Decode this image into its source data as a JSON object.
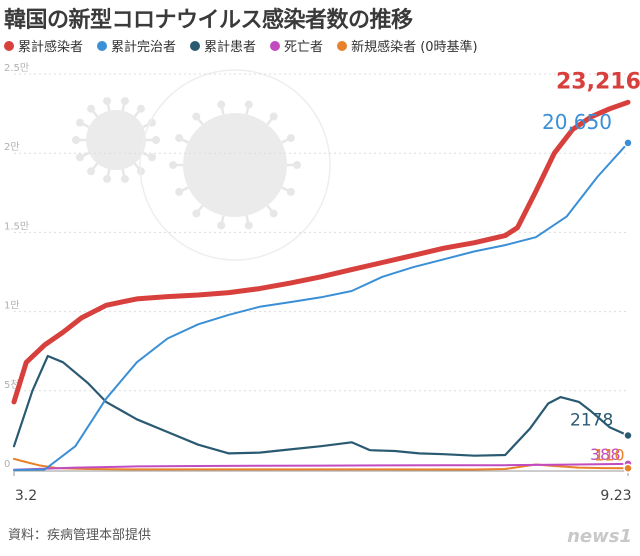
{
  "title": "韓国の新型コロナウイルス感染者数の推移",
  "source": "資料：疾病管理本部提供",
  "logo": "news1",
  "chart_data": {
    "type": "line",
    "title": "韓国の新型コロナウイルス感染者数の推移",
    "xlabel": "",
    "ylabel": "",
    "x_start_label": "3.2",
    "x_end_label": "9.23",
    "ylim": [
      0,
      25000
    ],
    "yticks": [
      {
        "value": 0,
        "label": "0"
      },
      {
        "value": 5000,
        "label": "5천"
      },
      {
        "value": 10000,
        "label": "1만"
      },
      {
        "value": 15000,
        "label": "1.5만"
      },
      {
        "value": 20000,
        "label": "2만"
      },
      {
        "value": 25000,
        "label": "2.5만"
      }
    ],
    "series": [
      {
        "name": "累計感染者",
        "color": "#d7403d",
        "end_label": "23,216",
        "points": [
          [
            0,
            4300
          ],
          [
            0.02,
            6800
          ],
          [
            0.05,
            7900
          ],
          [
            0.08,
            8700
          ],
          [
            0.11,
            9600
          ],
          [
            0.15,
            10400
          ],
          [
            0.2,
            10800
          ],
          [
            0.25,
            10950
          ],
          [
            0.3,
            11050
          ],
          [
            0.35,
            11200
          ],
          [
            0.4,
            11450
          ],
          [
            0.45,
            11800
          ],
          [
            0.5,
            12200
          ],
          [
            0.55,
            12650
          ],
          [
            0.6,
            13100
          ],
          [
            0.65,
            13550
          ],
          [
            0.7,
            14000
          ],
          [
            0.75,
            14350
          ],
          [
            0.8,
            14800
          ],
          [
            0.82,
            15300
          ],
          [
            0.85,
            17600
          ],
          [
            0.88,
            20000
          ],
          [
            0.91,
            21500
          ],
          [
            0.94,
            22300
          ],
          [
            0.97,
            22800
          ],
          [
            1.0,
            23216
          ]
        ]
      },
      {
        "name": "累計完治者",
        "color": "#3a8fd6",
        "end_label": "20,650",
        "points": [
          [
            0,
            0
          ],
          [
            0.05,
            30
          ],
          [
            0.1,
            1500
          ],
          [
            0.15,
            4500
          ],
          [
            0.2,
            6800
          ],
          [
            0.25,
            8300
          ],
          [
            0.3,
            9200
          ],
          [
            0.35,
            9800
          ],
          [
            0.4,
            10300
          ],
          [
            0.45,
            10600
          ],
          [
            0.5,
            10900
          ],
          [
            0.55,
            11300
          ],
          [
            0.6,
            12200
          ],
          [
            0.65,
            12800
          ],
          [
            0.7,
            13300
          ],
          [
            0.75,
            13800
          ],
          [
            0.8,
            14200
          ],
          [
            0.85,
            14700
          ],
          [
            0.9,
            16000
          ],
          [
            0.95,
            18500
          ],
          [
            1.0,
            20650
          ]
        ]
      },
      {
        "name": "累計患者",
        "color": "#2a5a72",
        "end_label": "2178",
        "points": [
          [
            0,
            1500
          ],
          [
            0.03,
            5000
          ],
          [
            0.055,
            7200
          ],
          [
            0.08,
            6800
          ],
          [
            0.12,
            5500
          ],
          [
            0.15,
            4300
          ],
          [
            0.2,
            3200
          ],
          [
            0.25,
            2400
          ],
          [
            0.3,
            1600
          ],
          [
            0.35,
            1050
          ],
          [
            0.4,
            1100
          ],
          [
            0.45,
            1300
          ],
          [
            0.5,
            1500
          ],
          [
            0.55,
            1750
          ],
          [
            0.58,
            1250
          ],
          [
            0.62,
            1200
          ],
          [
            0.66,
            1050
          ],
          [
            0.7,
            1000
          ],
          [
            0.75,
            900
          ],
          [
            0.8,
            950
          ],
          [
            0.84,
            2600
          ],
          [
            0.87,
            4200
          ],
          [
            0.89,
            4600
          ],
          [
            0.92,
            4300
          ],
          [
            0.94,
            3700
          ],
          [
            0.97,
            2700
          ],
          [
            1.0,
            2178
          ]
        ]
      },
      {
        "name": "死亡者",
        "color": "#c04cc0",
        "end_label": "388",
        "points": [
          [
            0,
            17
          ],
          [
            0.1,
            150
          ],
          [
            0.2,
            230
          ],
          [
            0.3,
            250
          ],
          [
            0.4,
            270
          ],
          [
            0.5,
            280
          ],
          [
            0.6,
            290
          ],
          [
            0.7,
            300
          ],
          [
            0.8,
            305
          ],
          [
            0.9,
            340
          ],
          [
            1.0,
            388
          ]
        ]
      },
      {
        "name": "新規感染者 (0時基準)",
        "color": "#e8822a",
        "end_label": "110",
        "points": [
          [
            0,
            700
          ],
          [
            0.02,
            500
          ],
          [
            0.04,
            300
          ],
          [
            0.07,
            120
          ],
          [
            0.12,
            60
          ],
          [
            0.2,
            40
          ],
          [
            0.4,
            35
          ],
          [
            0.6,
            40
          ],
          [
            0.75,
            30
          ],
          [
            0.8,
            60
          ],
          [
            0.85,
            350
          ],
          [
            0.88,
            250
          ],
          [
            0.92,
            150
          ],
          [
            0.96,
            120
          ],
          [
            1.0,
            110
          ]
        ]
      }
    ]
  }
}
